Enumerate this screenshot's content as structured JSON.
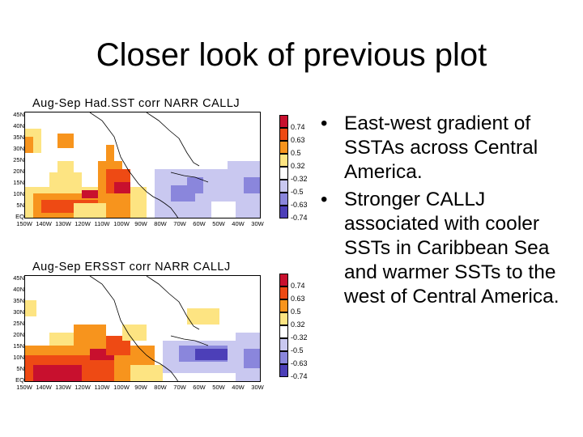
{
  "slide": {
    "title": "Closer look of previous plot"
  },
  "maps": [
    {
      "title": "Aug-Sep  Had.SST  corr  NARR  CALLJ",
      "lat_labels": [
        "45N",
        "40N",
        "35N",
        "30N",
        "25N",
        "20N",
        "15N",
        "10N",
        "5N",
        "EQ"
      ],
      "lon_labels": [
        "150W",
        "140W",
        "130W",
        "120W",
        "110W",
        "100W",
        "90W",
        "80W",
        "70W",
        "60W",
        "50W",
        "40W",
        "30W"
      ],
      "colorbar_labels": [
        "0.74",
        "0.63",
        "0.5",
        "0.32",
        "-0.32",
        "-0.5",
        "-0.63",
        "-0.74"
      ]
    },
    {
      "title": "Aug-Sep  ERSST  corr  NARR  CALLJ",
      "lat_labels": [
        "45N",
        "40N",
        "35N",
        "30N",
        "25N",
        "20N",
        "15N",
        "10N",
        "5N",
        "EQ"
      ],
      "lon_labels": [
        "150W",
        "140W",
        "130W",
        "120W",
        "110W",
        "100W",
        "90W",
        "80W",
        "70W",
        "60W",
        "50W",
        "40W",
        "30W"
      ],
      "colorbar_labels": [
        "0.74",
        "0.63",
        "0.5",
        "0.32",
        "-0.32",
        "-0.5",
        "-0.63",
        "-0.74"
      ]
    }
  ],
  "colorbar_colors": [
    "#c8102e",
    "#ee4a14",
    "#f7941d",
    "#fde482",
    "#ffffff",
    "#c9c8f0",
    "#8a86dc",
    "#4c3fb8",
    "#2a1c8f"
  ],
  "bullets": [
    "East-west gradient of SSTAs across Central America.",
    "Stronger CALLJ associated with cooler SSTs in Caribbean Sea and warmer SSTs to the west of Central America."
  ]
}
